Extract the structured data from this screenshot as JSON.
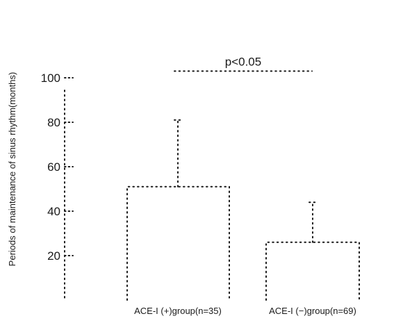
{
  "chart_data": {
    "type": "bar",
    "title": "",
    "xlabel": "",
    "ylabel": "Periods of maintenance of sinus rhythm(months)",
    "ylim": [
      0,
      100
    ],
    "yticks": [
      20,
      40,
      60,
      80,
      100
    ],
    "categories": [
      "ACE-I (+)group(n=35)",
      "ACE-I (−)group(n=69)"
    ],
    "values": [
      51,
      26
    ],
    "error_upper": [
      81,
      44
    ],
    "significance": {
      "label": "p<0.05",
      "y": 103
    },
    "grid": false,
    "legend": "none"
  }
}
